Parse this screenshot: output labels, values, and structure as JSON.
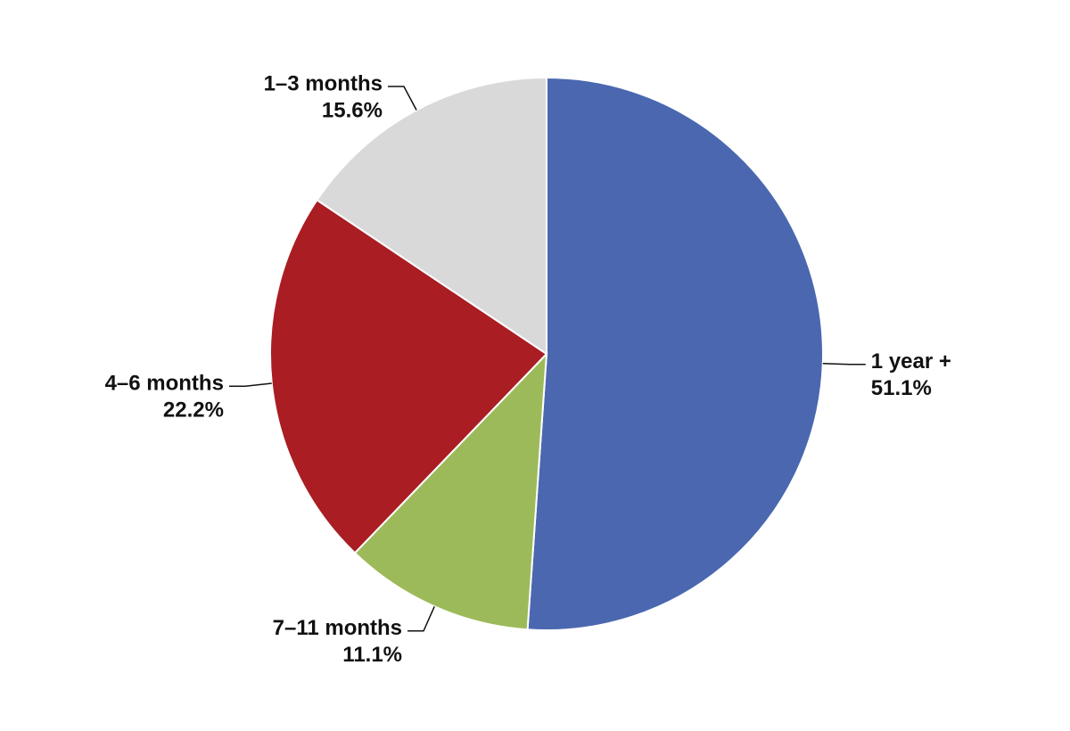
{
  "chart_data": {
    "type": "pie",
    "categories": [
      "1 year +",
      "7–11 months",
      "4–6 months",
      "1–3 months"
    ],
    "values": [
      51.1,
      11.1,
      22.2,
      15.6
    ],
    "value_labels": [
      "51.1%",
      "11.1%",
      "22.2%",
      "15.6%"
    ],
    "colors": [
      "#4a67b0",
      "#9dba5a",
      "#a91d23",
      "#d9d9d9"
    ]
  }
}
